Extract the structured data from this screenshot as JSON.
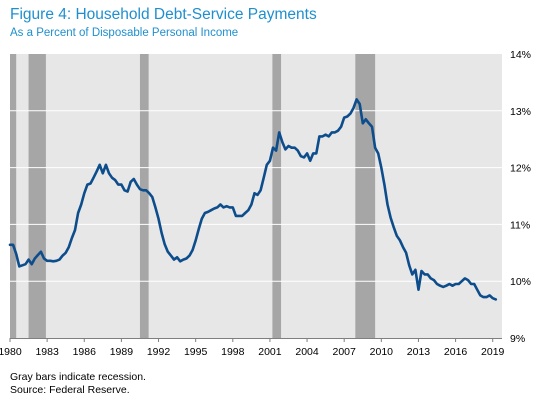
{
  "title": "Figure 4: Household Debt-Service Payments",
  "subtitle": "As a Percent of Disposable Personal Income",
  "notes": [
    "Gray bars indicate recession.",
    "Source: Federal Reserve."
  ],
  "colors": {
    "plot_bg": "#e7e7e7",
    "recession": "#a6a6a6",
    "line": "#0d4d8c",
    "grid": "#ffffff",
    "title": "#1f8fce"
  },
  "chart_data": {
    "type": "line",
    "title": "Figure 4: Household Debt-Service Payments",
    "subtitle": "As a Percent of Disposable Personal Income",
    "xlabel": "",
    "ylabel": "",
    "xlim": [
      1980,
      2019.75
    ],
    "ylim": [
      9,
      14
    ],
    "x_ticks": [
      "1980",
      "1983",
      "1986",
      "1989",
      "1992",
      "1995",
      "1998",
      "2001",
      "2004",
      "2007",
      "2010",
      "2013",
      "2016",
      "2019"
    ],
    "y_ticks": [
      "9%",
      "10%",
      "11%",
      "12%",
      "13%",
      "14%"
    ],
    "y_axis_position": "right",
    "grid": "horizontal",
    "recessions": [
      [
        1980.0,
        1980.5
      ],
      [
        1981.5,
        1982.9
      ],
      [
        1990.5,
        1991.2
      ],
      [
        2001.2,
        2001.9
      ],
      [
        2007.9,
        2009.5
      ]
    ],
    "series": [
      {
        "x": [
          1980.0,
          1980.25,
          1980.5,
          1980.75,
          1981.0,
          1981.25,
          1981.5,
          1981.75,
          1982.0,
          1982.25,
          1982.5,
          1982.75,
          1983.0,
          1983.25,
          1983.5,
          1983.75,
          1984.0,
          1984.25,
          1984.5,
          1984.75,
          1985.0,
          1985.25,
          1985.5,
          1985.75,
          1986.0,
          1986.25,
          1986.5,
          1986.75,
          1987.0,
          1987.25,
          1987.5,
          1987.75,
          1988.0,
          1988.25,
          1988.5,
          1988.75,
          1989.0,
          1989.25,
          1989.5,
          1989.75,
          1990.0,
          1990.25,
          1990.5,
          1990.75,
          1991.0,
          1991.25,
          1991.5,
          1991.75,
          1992.0,
          1992.25,
          1992.5,
          1992.75,
          1993.0,
          1993.25,
          1993.5,
          1993.75,
          1994.0,
          1994.25,
          1994.5,
          1994.75,
          1995.0,
          1995.25,
          1995.5,
          1995.75,
          1996.0,
          1996.25,
          1996.5,
          1996.75,
          1997.0,
          1997.25,
          1997.5,
          1997.75,
          1998.0,
          1998.25,
          1998.5,
          1998.75,
          1999.0,
          1999.25,
          1999.5,
          1999.75,
          2000.0,
          2000.25,
          2000.5,
          2000.75,
          2001.0,
          2001.25,
          2001.5,
          2001.75,
          2002.0,
          2002.25,
          2002.5,
          2002.75,
          2003.0,
          2003.25,
          2003.5,
          2003.75,
          2004.0,
          2004.25,
          2004.5,
          2004.75,
          2005.0,
          2005.25,
          2005.5,
          2005.75,
          2006.0,
          2006.25,
          2006.5,
          2006.75,
          2007.0,
          2007.25,
          2007.5,
          2007.75,
          2008.0,
          2008.25,
          2008.5,
          2008.75,
          2009.0,
          2009.25,
          2009.5,
          2009.75,
          2010.0,
          2010.25,
          2010.5,
          2010.75,
          2011.0,
          2011.25,
          2011.5,
          2011.75,
          2012.0,
          2012.25,
          2012.5,
          2012.75,
          2013.0,
          2013.25,
          2013.5,
          2013.75,
          2014.0,
          2014.25,
          2014.5,
          2014.75,
          2015.0,
          2015.25,
          2015.5,
          2015.75,
          2016.0,
          2016.25,
          2016.5,
          2016.75,
          2017.0,
          2017.25,
          2017.5,
          2017.75,
          2018.0,
          2018.25,
          2018.5,
          2018.75,
          2019.0,
          2019.25
        ],
        "values": [
          10.64,
          10.64,
          10.48,
          10.26,
          10.28,
          10.3,
          10.38,
          10.3,
          10.4,
          10.46,
          10.52,
          10.4,
          10.36,
          10.36,
          10.35,
          10.36,
          10.38,
          10.45,
          10.5,
          10.6,
          10.76,
          10.9,
          11.2,
          11.35,
          11.55,
          11.7,
          11.72,
          11.82,
          11.93,
          12.05,
          11.9,
          12.05,
          11.9,
          11.82,
          11.78,
          11.7,
          11.7,
          11.6,
          11.58,
          11.75,
          11.8,
          11.7,
          11.62,
          11.6,
          11.6,
          11.55,
          11.48,
          11.3,
          11.1,
          10.85,
          10.65,
          10.52,
          10.45,
          10.38,
          10.42,
          10.35,
          10.38,
          10.4,
          10.45,
          10.55,
          10.72,
          10.92,
          11.1,
          11.2,
          11.22,
          11.25,
          11.28,
          11.3,
          11.35,
          11.3,
          11.32,
          11.3,
          11.3,
          11.15,
          11.15,
          11.15,
          11.2,
          11.25,
          11.35,
          11.55,
          11.52,
          11.6,
          11.82,
          12.05,
          12.12,
          12.35,
          12.3,
          12.62,
          12.45,
          12.32,
          12.38,
          12.35,
          12.35,
          12.3,
          12.2,
          12.18,
          12.25,
          12.12,
          12.25,
          12.25,
          12.55,
          12.55,
          12.58,
          12.55,
          12.62,
          12.62,
          12.65,
          12.72,
          12.88,
          12.9,
          12.95,
          13.05,
          13.2,
          13.12,
          12.78,
          12.85,
          12.78,
          12.72,
          12.35,
          12.25,
          12.0,
          11.7,
          11.35,
          11.12,
          10.95,
          10.8,
          10.72,
          10.6,
          10.5,
          10.28,
          10.12,
          10.2,
          9.85,
          10.18,
          10.12,
          10.12,
          10.05,
          10.02,
          9.95,
          9.92,
          9.9,
          9.92,
          9.95,
          9.92,
          9.95,
          9.95,
          10.0,
          10.05,
          10.02,
          9.95,
          9.95,
          9.85,
          9.75,
          9.72,
          9.72,
          9.75,
          9.7,
          9.68
        ]
      }
    ]
  }
}
